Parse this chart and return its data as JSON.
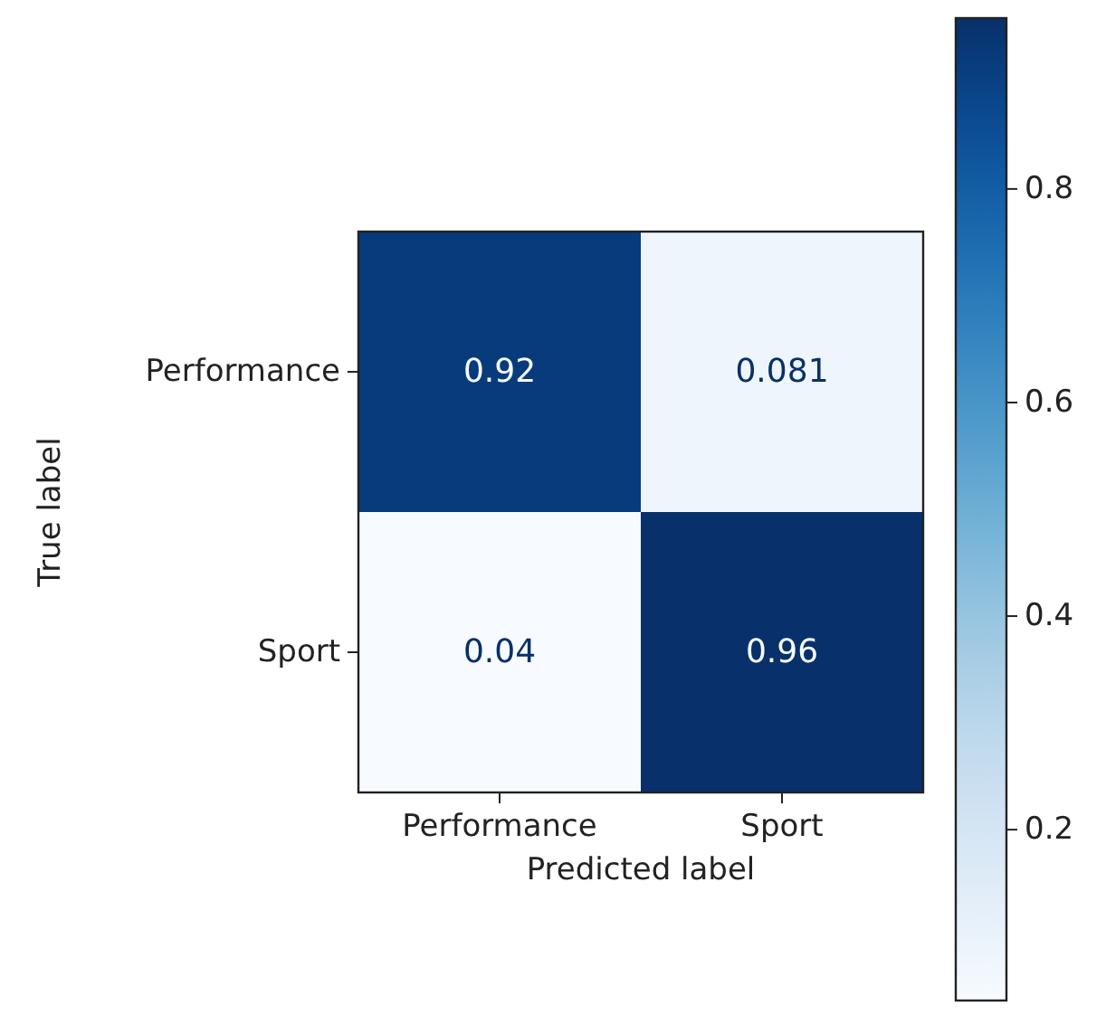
{
  "chart_data": {
    "type": "heatmap",
    "xlabel": "Predicted label",
    "ylabel": "True label",
    "categories": [
      "Performance",
      "Sport"
    ],
    "y_categories": [
      "Performance",
      "Sport"
    ],
    "cells": [
      [
        0.92,
        0.081
      ],
      [
        0.04,
        0.96
      ]
    ],
    "clim": [
      0.04,
      0.96
    ],
    "cticks": [
      0.2,
      0.4,
      0.6,
      0.8
    ],
    "data_labels": true
  }
}
